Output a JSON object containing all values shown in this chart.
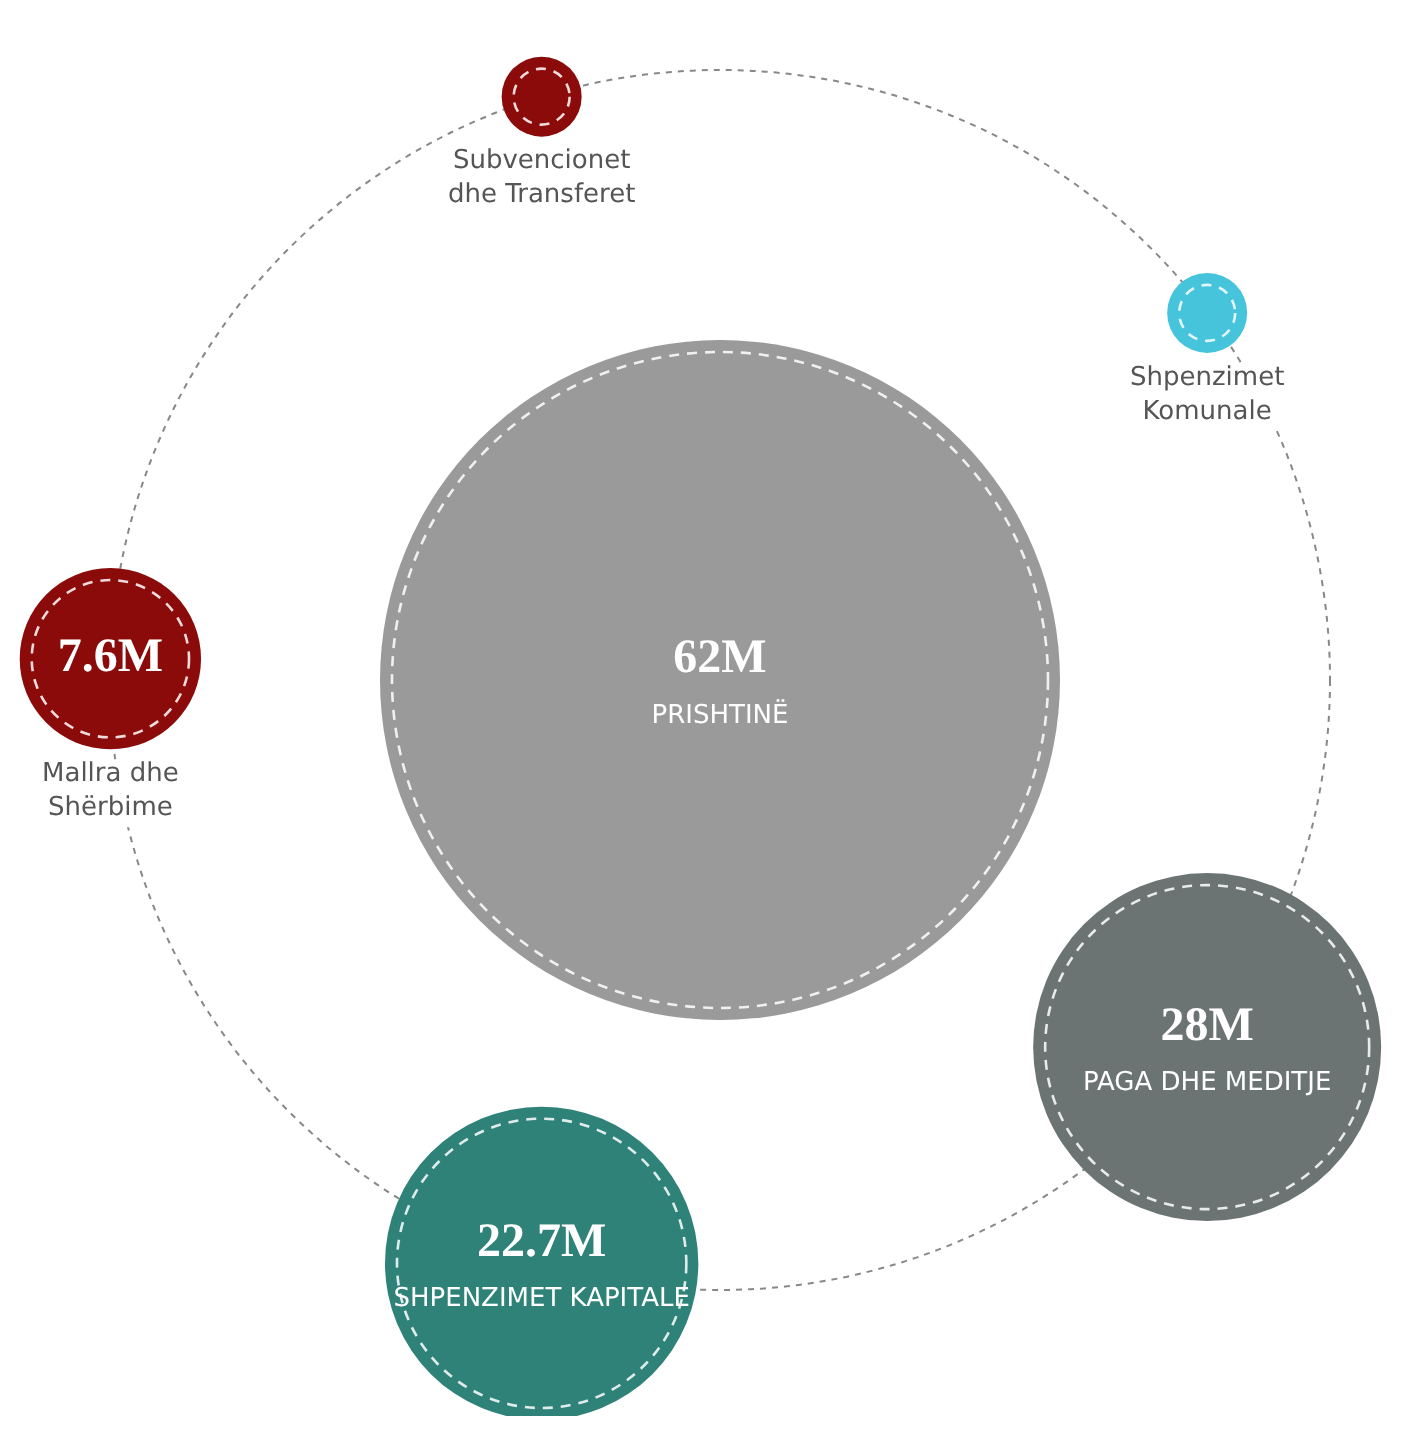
{
  "chart_data": {
    "type": "other",
    "categories": [
      "PRISHTINË",
      "Subvencionet dhe Transferet",
      "Shpenzimet Komunale",
      "PAGA DHE MEDITJE",
      "SHPENZIMET KAPITALE",
      "Mallra dhe Shërbime"
    ],
    "values": [
      62,
      null,
      null,
      28,
      22.7,
      7.6
    ],
    "value_labels": [
      "62M",
      null,
      null,
      "28M",
      "22.7M",
      "7.6M"
    ],
    "colors": [
      "#9a9a9a",
      "#8b0a0a",
      "#45c4dc",
      "#6b7373",
      "#2f8277",
      "#8b0a0a"
    ]
  }
}
